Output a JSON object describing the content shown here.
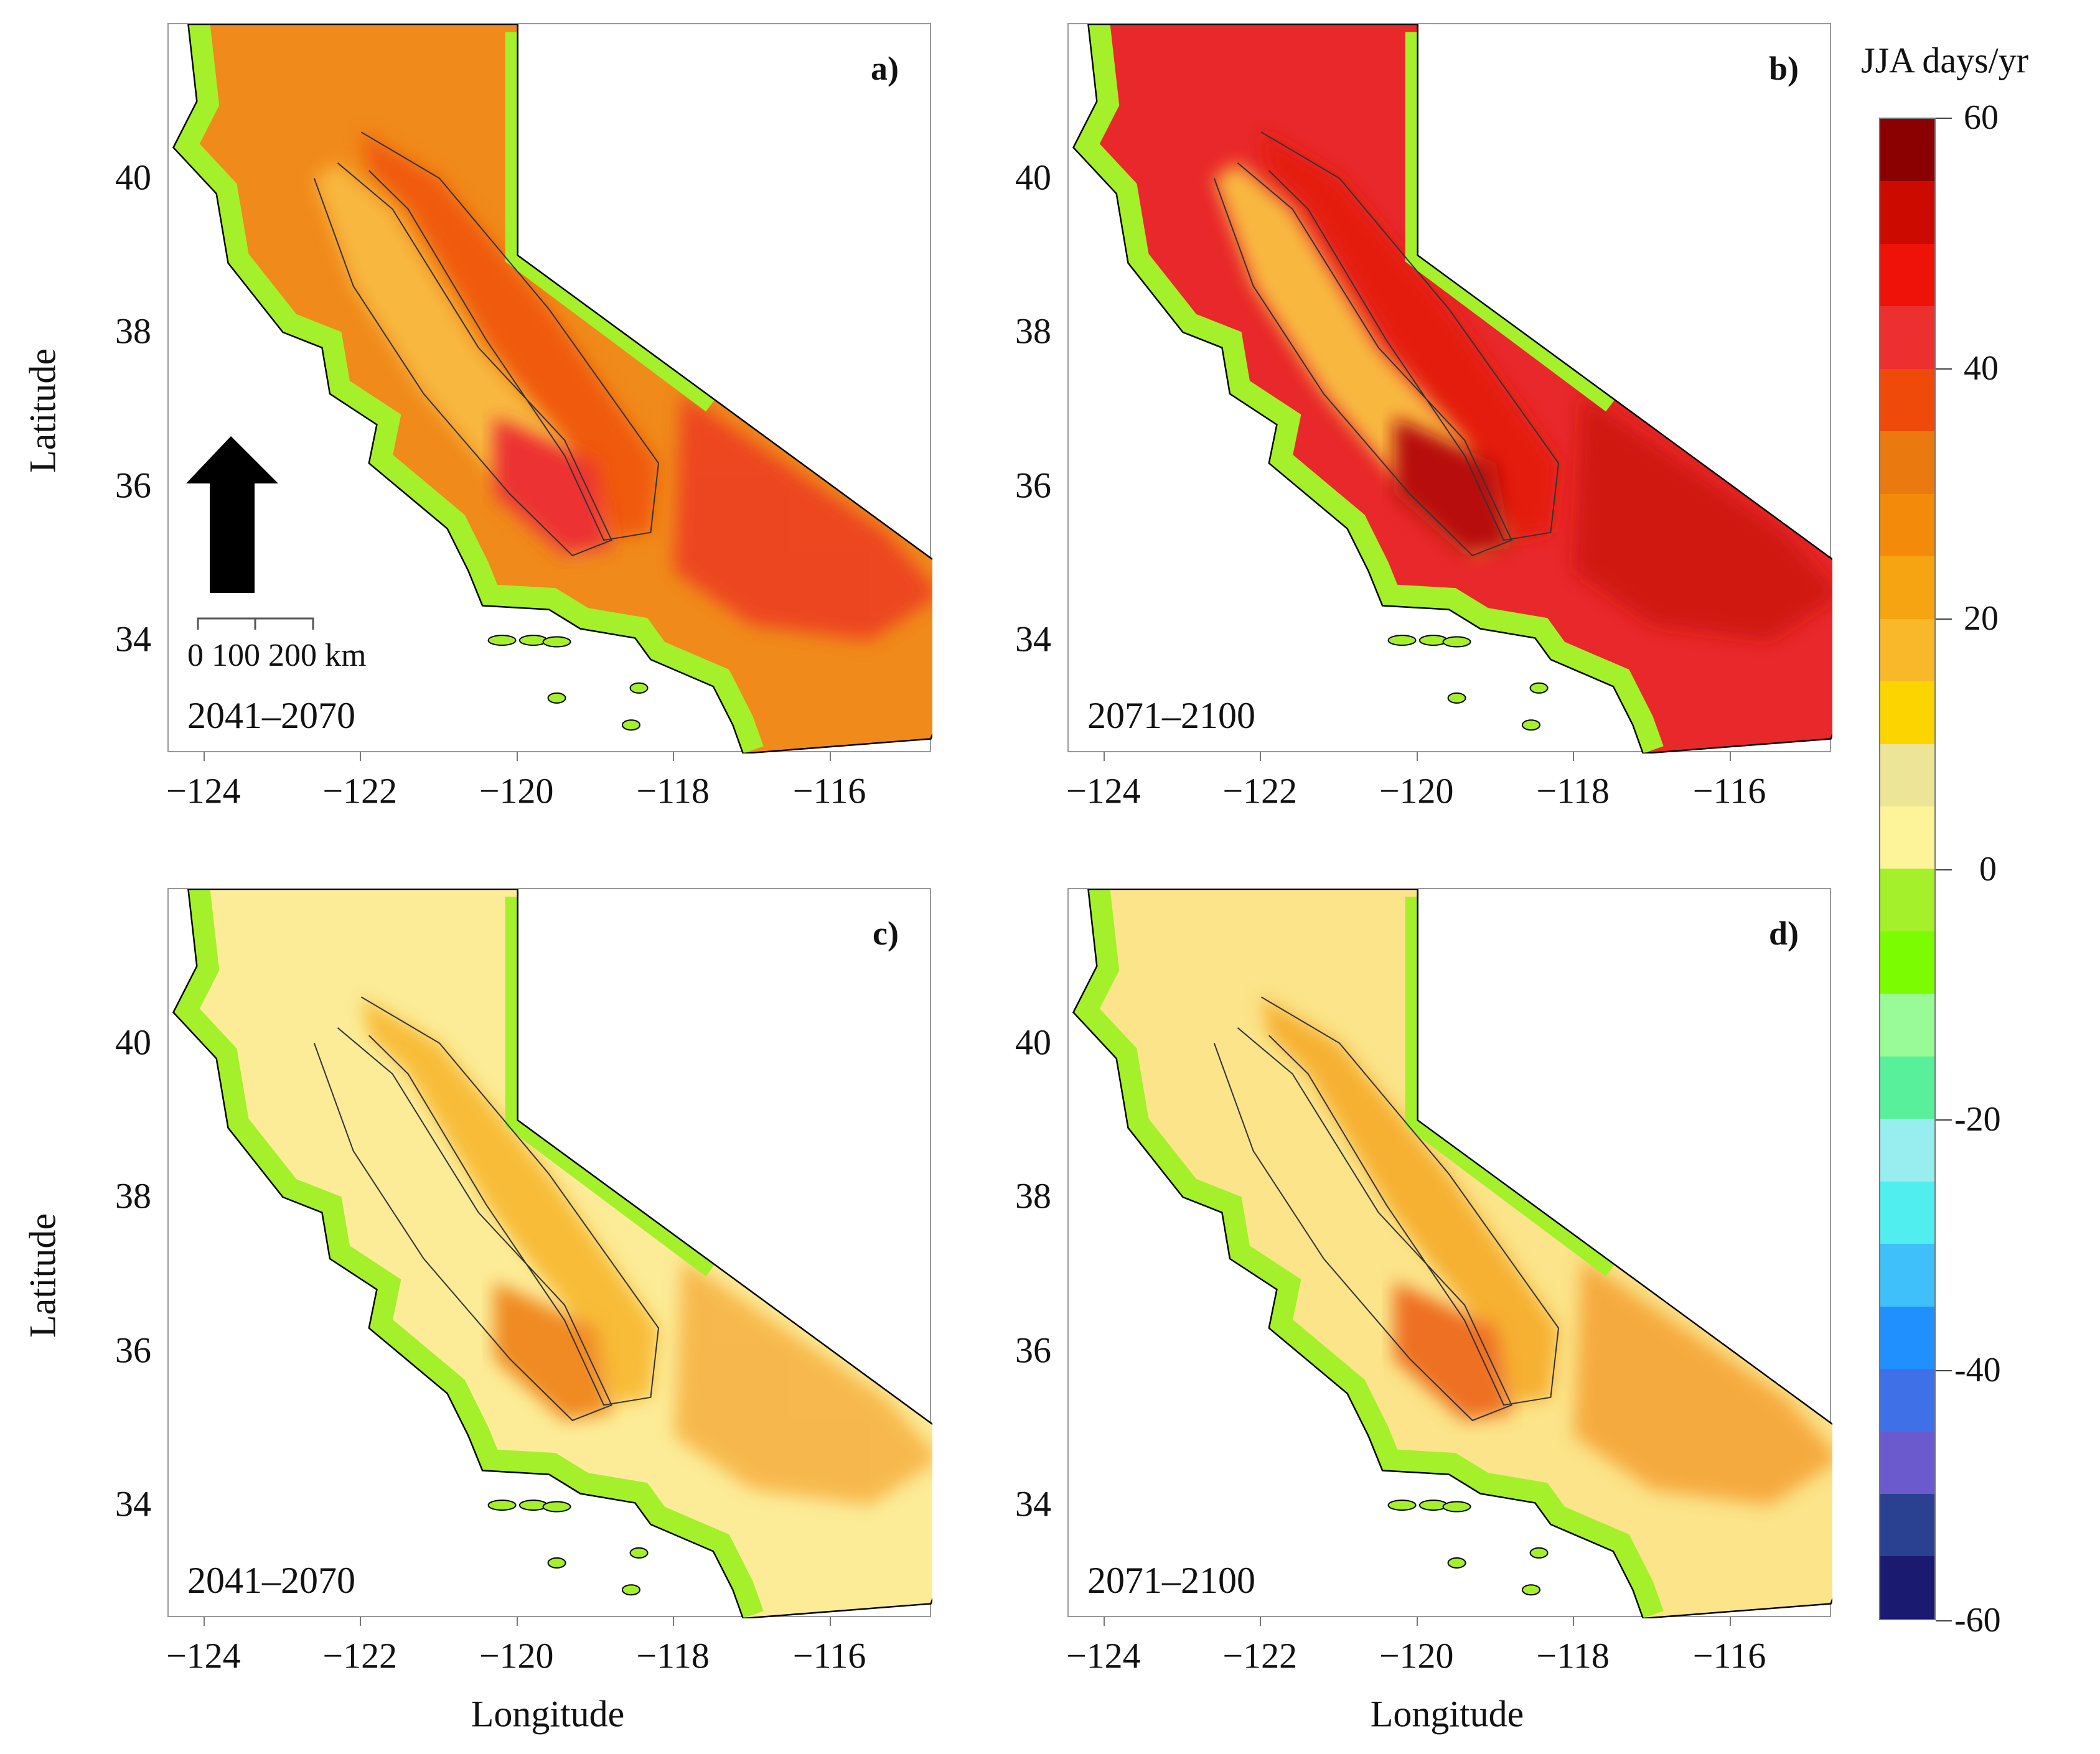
{
  "chart_data": {
    "type": "heatmap",
    "xlabel": "Longitude",
    "ylabel": "Latitude",
    "x_ticks": [
      "−124",
      "−122",
      "−120",
      "−118",
      "−116"
    ],
    "x_tick_values": [
      -124,
      -122,
      -120,
      -118,
      -116
    ],
    "y_ticks": [
      "40",
      "38",
      "36",
      "34"
    ],
    "y_tick_values": [
      40,
      38,
      36,
      34
    ],
    "xlim": [
      -124.46,
      -114.7
    ],
    "ylim": [
      32.53,
      42.0
    ],
    "panels": [
      {
        "label": "a)",
        "period": "2041–2070",
        "base": "#f08a1a",
        "valley": "#ec3232",
        "desert": "#ec3a20",
        "mountain": "#f05a0c"
      },
      {
        "label": "b)",
        "period": "2071–2100",
        "base": "#e8282a",
        "valley": "#b81008",
        "desert": "#cc1408",
        "mountain": "#e41a10"
      },
      {
        "label": "c)",
        "period": "2041–2070",
        "base": "#fcec98",
        "valley": "#f08a20",
        "desert": "#f6b040",
        "mountain": "#f8bc38"
      },
      {
        "label": "d)",
        "period": "2071–2100",
        "base": "#fbe48a",
        "valley": "#ee7020",
        "desert": "#f4a030",
        "mountain": "#f6b030"
      }
    ],
    "colorbar": {
      "title": "JJA days/yr",
      "range": [
        -60,
        60
      ],
      "ticks": [
        "60",
        "40",
        "20",
        "0",
        "-20",
        "-40",
        "-60"
      ],
      "tick_values": [
        60,
        40,
        20,
        0,
        -20,
        -40,
        -60
      ],
      "colors": [
        "#8b0000",
        "#cc0a00",
        "#ee1208",
        "#ec3030",
        "#f04a0a",
        "#ea7a10",
        "#f48a0a",
        "#f6a412",
        "#f8b82a",
        "#fcd400",
        "#ece496",
        "#fdf49a",
        "#a4f02a",
        "#7cfc00",
        "#98fb98",
        "#58f09a",
        "#98eeee",
        "#50eeee",
        "#40c0fa",
        "#2090ff",
        "#4070e8",
        "#6a5acd",
        "#2a4090",
        "#1a1a70"
      ]
    },
    "scale_bar": {
      "labels": [
        "0",
        "100",
        "200 km"
      ]
    },
    "north_arrow": "north-arrow"
  }
}
